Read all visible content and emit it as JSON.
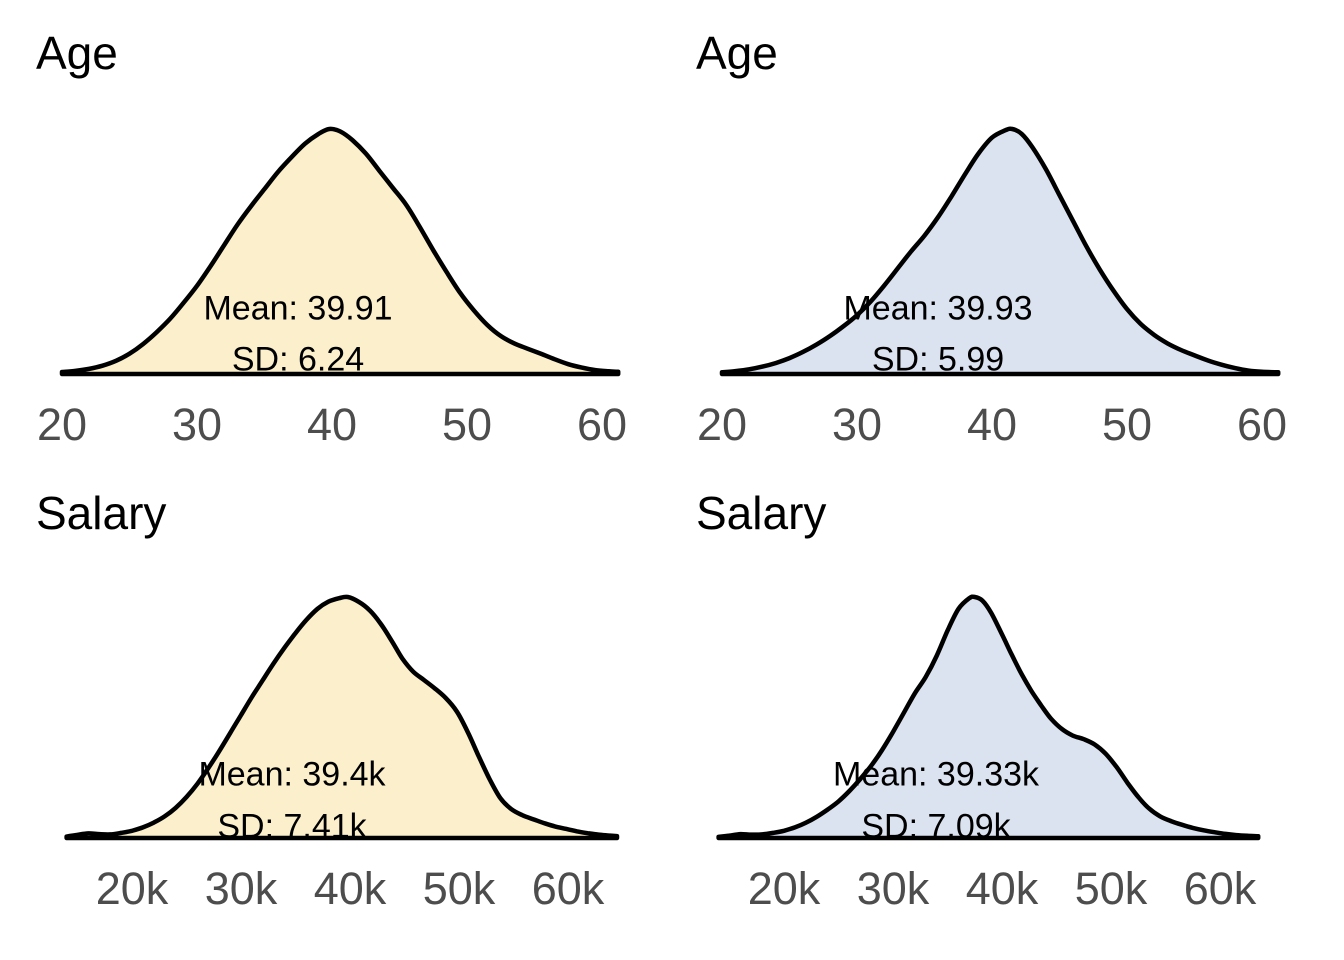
{
  "page": {
    "background": "#ffffff"
  },
  "colors": {
    "curve_stroke": "#000000",
    "fill_yellow": "#FBF0CB",
    "fill_blue": "#DCE3F0",
    "axis_text": "#4D4D4D",
    "title_text": "#000000"
  },
  "chart_data": [
    {
      "type": "area",
      "subtype": "density",
      "panel": "top-left",
      "title": "Age",
      "fill": "#FBF0CB",
      "mean": 39.91,
      "sd": 6.24,
      "annotations": {
        "mean": "Mean: 39.91",
        "sd": "SD: 6.24"
      },
      "x_ticks": [
        20,
        30,
        40,
        50,
        60
      ],
      "x_tick_labels": [
        "20",
        "30",
        "40",
        "50",
        "60"
      ],
      "x_range": [
        20,
        61.2
      ],
      "grid": false,
      "legend": false,
      "density_points": [
        [
          20,
          0.008
        ],
        [
          21,
          0.013
        ],
        [
          22,
          0.021
        ],
        [
          23,
          0.034
        ],
        [
          24,
          0.054
        ],
        [
          25,
          0.083
        ],
        [
          26,
          0.122
        ],
        [
          27,
          0.17
        ],
        [
          28,
          0.225
        ],
        [
          29,
          0.29
        ],
        [
          30,
          0.36
        ],
        [
          31,
          0.44
        ],
        [
          32,
          0.525
        ],
        [
          33,
          0.61
        ],
        [
          34,
          0.685
        ],
        [
          35,
          0.755
        ],
        [
          36,
          0.825
        ],
        [
          37,
          0.885
        ],
        [
          38,
          0.94
        ],
        [
          39,
          0.98
        ],
        [
          39.8,
          1.0
        ],
        [
          40.6,
          0.99
        ],
        [
          41.5,
          0.955
        ],
        [
          42.5,
          0.9
        ],
        [
          43.5,
          0.83
        ],
        [
          44.5,
          0.76
        ],
        [
          45.5,
          0.69
        ],
        [
          46.5,
          0.6
        ],
        [
          47.5,
          0.505
        ],
        [
          48.5,
          0.415
        ],
        [
          49.5,
          0.33
        ],
        [
          50.5,
          0.26
        ],
        [
          51.5,
          0.2
        ],
        [
          52.5,
          0.155
        ],
        [
          53.5,
          0.125
        ],
        [
          54.5,
          0.103
        ],
        [
          55.5,
          0.082
        ],
        [
          56.5,
          0.06
        ],
        [
          57.5,
          0.04
        ],
        [
          58.5,
          0.026
        ],
        [
          59.5,
          0.016
        ],
        [
          60.5,
          0.011
        ],
        [
          61.2,
          0.009
        ]
      ]
    },
    {
      "type": "area",
      "subtype": "density",
      "panel": "top-right",
      "title": "Age",
      "fill": "#DCE3F0",
      "mean": 39.93,
      "sd": 5.99,
      "annotations": {
        "mean": "Mean: 39.93",
        "sd": "SD: 5.99"
      },
      "x_ticks": [
        20,
        30,
        40,
        50,
        60
      ],
      "x_tick_labels": [
        "20",
        "30",
        "40",
        "50",
        "60"
      ],
      "x_range": [
        20,
        61.2
      ],
      "grid": false,
      "legend": false,
      "density_points": [
        [
          20,
          0.007
        ],
        [
          21,
          0.012
        ],
        [
          22,
          0.019
        ],
        [
          23,
          0.03
        ],
        [
          24,
          0.045
        ],
        [
          25,
          0.065
        ],
        [
          26,
          0.09
        ],
        [
          27,
          0.12
        ],
        [
          28,
          0.155
        ],
        [
          29,
          0.195
        ],
        [
          30,
          0.24
        ],
        [
          31,
          0.295
        ],
        [
          32,
          0.36
        ],
        [
          33,
          0.43
        ],
        [
          34,
          0.5
        ],
        [
          35,
          0.565
        ],
        [
          36,
          0.64
        ],
        [
          37,
          0.725
        ],
        [
          38,
          0.815
        ],
        [
          39,
          0.9
        ],
        [
          40,
          0.965
        ],
        [
          41,
          0.995
        ],
        [
          41.5,
          1.0
        ],
        [
          42.2,
          0.98
        ],
        [
          43,
          0.925
        ],
        [
          44,
          0.835
        ],
        [
          45,
          0.73
        ],
        [
          46,
          0.625
        ],
        [
          47,
          0.52
        ],
        [
          48,
          0.425
        ],
        [
          49,
          0.34
        ],
        [
          50,
          0.265
        ],
        [
          51,
          0.205
        ],
        [
          52,
          0.16
        ],
        [
          53,
          0.125
        ],
        [
          54,
          0.098
        ],
        [
          55,
          0.076
        ],
        [
          56,
          0.055
        ],
        [
          57,
          0.038
        ],
        [
          58,
          0.024
        ],
        [
          59,
          0.014
        ],
        [
          60,
          0.009
        ],
        [
          61.2,
          0.007
        ]
      ]
    },
    {
      "type": "area",
      "subtype": "density",
      "panel": "bottom-left",
      "title": "Salary",
      "fill": "#FBF0CB",
      "mean": "39.4k",
      "sd": "7.41k",
      "annotations": {
        "mean": "Mean: 39.4k",
        "sd": "SD: 7.41k"
      },
      "x_ticks": [
        20,
        30,
        40,
        50,
        60
      ],
      "x_tick_labels": [
        "20k",
        "30k",
        "40k",
        "50k",
        "60k"
      ],
      "x_range": [
        14,
        64.5
      ],
      "grid": false,
      "legend": false,
      "density_points": [
        [
          14,
          0.006
        ],
        [
          15,
          0.013
        ],
        [
          16,
          0.019
        ],
        [
          17,
          0.016
        ],
        [
          18,
          0.015
        ],
        [
          19,
          0.021
        ],
        [
          20,
          0.03
        ],
        [
          21,
          0.044
        ],
        [
          22,
          0.064
        ],
        [
          23,
          0.09
        ],
        [
          24,
          0.125
        ],
        [
          25,
          0.17
        ],
        [
          26,
          0.225
        ],
        [
          27,
          0.29
        ],
        [
          28,
          0.36
        ],
        [
          29,
          0.435
        ],
        [
          30,
          0.51
        ],
        [
          31,
          0.585
        ],
        [
          32,
          0.655
        ],
        [
          33,
          0.725
        ],
        [
          34,
          0.79
        ],
        [
          35,
          0.85
        ],
        [
          36,
          0.905
        ],
        [
          37,
          0.95
        ],
        [
          38,
          0.98
        ],
        [
          39,
          0.995
        ],
        [
          39.8,
          1.0
        ],
        [
          40.8,
          0.98
        ],
        [
          41.8,
          0.945
        ],
        [
          42.8,
          0.89
        ],
        [
          43.8,
          0.82
        ],
        [
          44.8,
          0.745
        ],
        [
          45.8,
          0.69
        ],
        [
          46.8,
          0.655
        ],
        [
          47.8,
          0.62
        ],
        [
          48.8,
          0.58
        ],
        [
          49.8,
          0.525
        ],
        [
          50.8,
          0.44
        ],
        [
          51.8,
          0.34
        ],
        [
          52.8,
          0.245
        ],
        [
          53.8,
          0.165
        ],
        [
          54.8,
          0.12
        ],
        [
          55.8,
          0.095
        ],
        [
          56.8,
          0.078
        ],
        [
          57.8,
          0.062
        ],
        [
          58.8,
          0.048
        ],
        [
          59.8,
          0.038
        ],
        [
          60.8,
          0.028
        ],
        [
          61.8,
          0.02
        ],
        [
          62.8,
          0.014
        ],
        [
          63.8,
          0.01
        ],
        [
          64.5,
          0.008
        ]
      ]
    },
    {
      "type": "area",
      "subtype": "density",
      "panel": "bottom-right",
      "title": "Salary",
      "fill": "#DCE3F0",
      "mean": "39.33k",
      "sd": "7.09k",
      "annotations": {
        "mean": "Mean: 39.33k",
        "sd": "SD: 7.09k"
      },
      "x_ticks": [
        20,
        30,
        40,
        50,
        60
      ],
      "x_tick_labels": [
        "20k",
        "30k",
        "40k",
        "50k",
        "60k"
      ],
      "x_range": [
        14,
        63.5
      ],
      "grid": false,
      "legend": false,
      "density_points": [
        [
          14,
          0.005
        ],
        [
          15,
          0.01
        ],
        [
          16,
          0.016
        ],
        [
          17,
          0.014
        ],
        [
          18,
          0.015
        ],
        [
          19,
          0.021
        ],
        [
          20,
          0.03
        ],
        [
          21,
          0.044
        ],
        [
          22,
          0.063
        ],
        [
          23,
          0.088
        ],
        [
          24,
          0.118
        ],
        [
          25,
          0.152
        ],
        [
          26,
          0.195
        ],
        [
          27,
          0.245
        ],
        [
          28,
          0.3
        ],
        [
          29,
          0.365
        ],
        [
          30,
          0.44
        ],
        [
          31,
          0.52
        ],
        [
          32,
          0.6
        ],
        [
          33,
          0.668
        ],
        [
          34,
          0.755
        ],
        [
          35,
          0.86
        ],
        [
          36,
          0.95
        ],
        [
          37,
          0.995
        ],
        [
          37.5,
          1.0
        ],
        [
          38.2,
          0.985
        ],
        [
          39,
          0.935
        ],
        [
          40,
          0.845
        ],
        [
          40.9,
          0.76
        ],
        [
          41.8,
          0.68
        ],
        [
          42.7,
          0.61
        ],
        [
          43.6,
          0.55
        ],
        [
          44.5,
          0.495
        ],
        [
          45.5,
          0.452
        ],
        [
          46.5,
          0.425
        ],
        [
          47.5,
          0.41
        ],
        [
          48.5,
          0.388
        ],
        [
          49.5,
          0.35
        ],
        [
          50.5,
          0.295
        ],
        [
          51.5,
          0.23
        ],
        [
          52.5,
          0.17
        ],
        [
          53.5,
          0.122
        ],
        [
          54.5,
          0.09
        ],
        [
          55.5,
          0.07
        ],
        [
          56.5,
          0.055
        ],
        [
          57.5,
          0.042
        ],
        [
          58.5,
          0.032
        ],
        [
          59.5,
          0.024
        ],
        [
          60.5,
          0.017
        ],
        [
          61.5,
          0.012
        ],
        [
          62.5,
          0.009
        ],
        [
          63.5,
          0.007
        ]
      ]
    }
  ]
}
